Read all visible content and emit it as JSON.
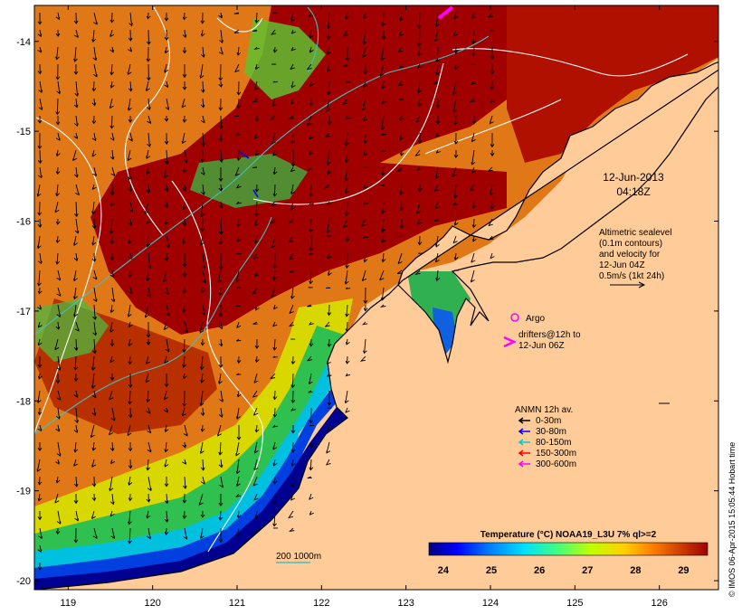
{
  "map": {
    "lat_ticks": [
      "-14",
      "-15",
      "-16",
      "-17",
      "-18",
      "-19",
      "-20"
    ],
    "lon_ticks": [
      "119",
      "120",
      "121",
      "122",
      "123",
      "124",
      "125",
      "126"
    ],
    "lat_range": [
      -20.1,
      -13.6
    ],
    "lon_range": [
      118.6,
      126.7
    ]
  },
  "annotations": {
    "date": "12-Jun-2013",
    "time": "04:18Z",
    "altimetry": [
      "Altimetric sealevel",
      "(0.1m contours)",
      "and velocity for",
      "12-Jun 04Z",
      "0.5m/s (1kt 24h)"
    ],
    "argo": "Argo",
    "drifters": [
      "drifters@12h to",
      "12-Jun 06Z"
    ]
  },
  "legend": {
    "title": "ANMN 12h av.",
    "items": [
      {
        "label": "0-30m",
        "color": "#000000"
      },
      {
        "label": "30-80m",
        "color": "#0000ff"
      },
      {
        "label": "80-150m",
        "color": "#00cccc"
      },
      {
        "label": "150-300m",
        "color": "#ff0000"
      },
      {
        "label": "300-600m",
        "color": "#ff00ff"
      }
    ]
  },
  "colorbar": {
    "title": "Temperature (°C) NOAA19_L3U 7% ql>=2",
    "ticks": [
      "24",
      "25",
      "26",
      "27",
      "28",
      "29"
    ],
    "range": [
      23.7,
      29.5
    ],
    "colors": [
      "#000080",
      "#0000ff",
      "#0080ff",
      "#00e0ff",
      "#40ff80",
      "#c0ff00",
      "#ffd000",
      "#ff8000",
      "#d04000",
      "#a00000"
    ]
  },
  "isobath_label": "200  1000m",
  "credit": "© IMOS 06-Apr-2015 15:05:44 Hobart time",
  "colors": {
    "land": "#ffcc99",
    "contour": "#ffffff",
    "isobath": "#40c0c0"
  }
}
